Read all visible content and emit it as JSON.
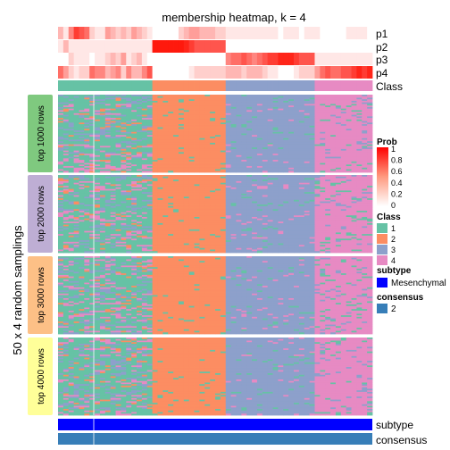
{
  "chart_data": {
    "type": "heatmap",
    "title": "membership heatmap, k = 4",
    "ylabel": "50 x 4 random samplings",
    "prob_rows": [
      "p1",
      "p2",
      "p3",
      "p4"
    ],
    "class_row_label": "Class",
    "row_groups": [
      "top 1000 rows",
      "top 2000 rows",
      "top 3000 rows",
      "top 4000 rows"
    ],
    "bottom_rows": [
      "subtype",
      "consensus"
    ],
    "column_blocks": [
      {
        "class": "1",
        "columns": 18
      },
      {
        "class": "4",
        "columns": 0
      },
      {
        "class": "2",
        "columns": 14
      },
      {
        "class": "3",
        "columns": 17
      },
      {
        "class": "4",
        "columns": 11
      }
    ],
    "prob_values": {
      "p1": [
        0.3,
        0.1,
        0.5,
        0.8,
        0.7,
        0.6,
        0.2,
        0.1,
        0.1,
        0.4,
        0.3,
        0.2,
        0.3,
        0.2,
        0.4,
        0.3,
        0.2,
        0.1,
        0.0,
        0.0,
        0.0,
        0.0,
        0.0,
        0.2,
        0.3,
        0.4,
        0.4,
        0.3,
        0.3,
        0.3,
        0.2,
        0.2,
        0.1,
        0.1,
        0.1,
        0.1,
        0.1,
        0.1,
        0.1,
        0.1,
        0.1,
        0.1,
        0.0,
        0.1,
        0.1,
        0.1,
        0.0,
        0.1,
        0.1,
        0.1,
        0.0,
        0.0,
        0.0,
        0.0,
        0.0,
        0.1,
        0.1,
        0.1,
        0.1,
        0.0
      ],
      "p2": [
        0.1,
        0.3,
        0.1,
        0.1,
        0.1,
        0.1,
        0.1,
        0.1,
        0.1,
        0.1,
        0.1,
        0.1,
        0.1,
        0.1,
        0.1,
        0.1,
        0.1,
        0.1,
        0.95,
        0.95,
        0.95,
        0.95,
        0.95,
        0.95,
        0.9,
        0.8,
        0.7,
        0.7,
        0.7,
        0.7,
        0.7,
        0.7,
        0.0,
        0.0,
        0.0,
        0.0,
        0.0,
        0.0,
        0.0,
        0.0,
        0.0,
        0.0,
        0.0,
        0.0,
        0.0,
        0.0,
        0.0,
        0.0,
        0.0,
        0.0,
        0.0,
        0.0,
        0.0,
        0.0,
        0.0,
        0.0,
        0.0,
        0.0,
        0.0,
        0.0
      ],
      "p3": [
        0.0,
        0.0,
        0.2,
        0.1,
        0.1,
        0.1,
        0.0,
        0.1,
        0.1,
        0.2,
        0.3,
        0.2,
        0.4,
        0.1,
        0.2,
        0.3,
        0.1,
        0.0,
        0.0,
        0.0,
        0.0,
        0.0,
        0.0,
        0.0,
        0.0,
        0.0,
        0.0,
        0.0,
        0.0,
        0.0,
        0.0,
        0.0,
        0.5,
        0.6,
        0.6,
        0.7,
        0.6,
        0.5,
        0.6,
        0.7,
        0.8,
        0.8,
        0.9,
        0.9,
        0.9,
        0.8,
        0.7,
        0.7,
        0.7,
        0.1,
        0.1,
        0.1,
        0.1,
        0.1,
        0.1,
        0.1,
        0.1,
        0.1,
        0.1,
        0.1
      ],
      "p4": [
        0.6,
        0.4,
        0.2,
        0.1,
        0.2,
        0.2,
        0.6,
        0.5,
        0.5,
        0.3,
        0.4,
        0.5,
        0.2,
        0.5,
        0.3,
        0.3,
        0.5,
        0.7,
        0.0,
        0.0,
        0.0,
        0.0,
        0.0,
        0.0,
        0.0,
        0.1,
        0.2,
        0.2,
        0.2,
        0.2,
        0.2,
        0.2,
        0.3,
        0.3,
        0.3,
        0.2,
        0.3,
        0.3,
        0.3,
        0.2,
        0.1,
        0.1,
        0.0,
        0.0,
        0.0,
        0.1,
        0.2,
        0.2,
        0.2,
        0.4,
        0.6,
        0.7,
        0.6,
        0.6,
        0.7,
        0.7,
        0.8,
        0.9,
        0.8,
        0.9
      ]
    },
    "legend": {
      "prob": {
        "title": "Prob",
        "ticks": [
          "1",
          "0.8",
          "0.6",
          "0.4",
          "0.2",
          "0"
        ]
      },
      "class": {
        "title": "Class",
        "items": [
          {
            "label": "1",
            "color": "#66c2a5"
          },
          {
            "label": "2",
            "color": "#fc8d62"
          },
          {
            "label": "3",
            "color": "#8da0cb"
          },
          {
            "label": "4",
            "color": "#e78ac3"
          }
        ]
      },
      "subtype": {
        "title": "subtype",
        "items": [
          {
            "label": "Mesenchymal",
            "color": "#0000ff"
          }
        ]
      },
      "consensus": {
        "title": "consensus",
        "items": [
          {
            "label": "2",
            "color": "#377eb8"
          }
        ]
      }
    },
    "colors": {
      "prob_high": "#ff0000",
      "prob_low": "#ffffff",
      "group1": "#7fc97f",
      "group2": "#beaed4",
      "group3": "#fdc086",
      "group4": "#ffff99"
    }
  }
}
